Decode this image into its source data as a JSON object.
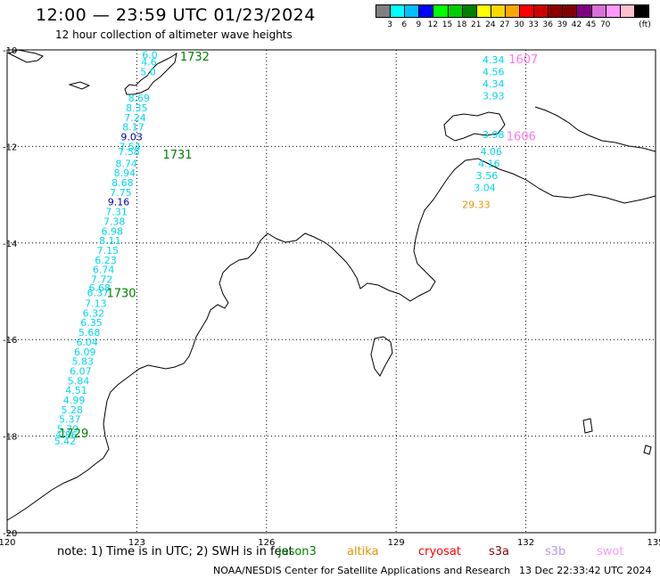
{
  "header": {
    "title": "12:00 — 23:59 UTC 01/23/2024",
    "subtitle": "12 hour collection of altimeter wave heights"
  },
  "legend": {
    "unit": "(ft)",
    "colors": [
      "#808080",
      "#00ffff",
      "#00bfff",
      "#0000ff",
      "#00ff00",
      "#00cc00",
      "#008000",
      "#ffff00",
      "#ffd700",
      "#ffa500",
      "#ff0000",
      "#cc0000",
      "#8b0000",
      "#800000",
      "#800080",
      "#da70d6",
      "#ff99ff",
      "#ffc0cb",
      "#000000"
    ],
    "ticks": [
      "3",
      "6",
      "9",
      "12",
      "15",
      "18",
      "21",
      "24",
      "27",
      "30",
      "33",
      "36",
      "39",
      "42",
      "45",
      "70"
    ]
  },
  "axes": {
    "x_ticks": [
      "120",
      "123",
      "126",
      "129",
      "132",
      "135"
    ],
    "y_ticks": [
      "-10",
      "-12",
      "-14",
      "-16",
      "-18",
      "-20"
    ]
  },
  "chart_data": {
    "type": "scatter",
    "xlim": [
      120,
      135
    ],
    "ylim": [
      -20,
      -10
    ],
    "grid": true,
    "passes": [
      {
        "label": "1732",
        "lon": 124.0,
        "lat": -10.15,
        "color": "#008000"
      },
      {
        "label": "1731",
        "lon": 123.6,
        "lat": -12.18,
        "color": "#008000"
      },
      {
        "label": "1730",
        "lon": 122.3,
        "lat": -15.05,
        "color": "#008000"
      },
      {
        "label": "1729",
        "lon": 121.2,
        "lat": -17.95,
        "color": "#008000"
      },
      {
        "label": "1607",
        "lon": 131.6,
        "lat": -10.2,
        "color": "#ff77ee"
      },
      {
        "label": "1606",
        "lon": 131.55,
        "lat": -11.8,
        "color": "#ff77ee"
      }
    ],
    "track_1": [
      {
        "lon": 123.3,
        "lat": -10.1,
        "v": "6.0"
      },
      {
        "lon": 123.28,
        "lat": -10.25,
        "v": "4.6"
      },
      {
        "lon": 123.26,
        "lat": -10.45,
        "v": "5.0"
      },
      {
        "lon": 123.05,
        "lat": -11.0,
        "v": "8.69"
      },
      {
        "lon": 123.0,
        "lat": -11.2,
        "v": "8.35"
      },
      {
        "lon": 122.96,
        "lat": -11.4,
        "v": "7.24"
      },
      {
        "lon": 122.92,
        "lat": -11.6,
        "v": "8.17"
      },
      {
        "lon": 122.88,
        "lat": -11.8,
        "v": "9.03",
        "color": "#0000aa"
      },
      {
        "lon": 122.84,
        "lat": -12.0,
        "v": "7.54"
      },
      {
        "lon": 122.82,
        "lat": -12.1,
        "v": "7.58"
      },
      {
        "lon": 122.76,
        "lat": -12.35,
        "v": "8.74"
      },
      {
        "lon": 122.72,
        "lat": -12.55,
        "v": "8.94"
      },
      {
        "lon": 122.67,
        "lat": -12.75,
        "v": "8.68"
      },
      {
        "lon": 122.63,
        "lat": -12.95,
        "v": "7.75"
      },
      {
        "lon": 122.58,
        "lat": -13.15,
        "v": "9.16",
        "color": "#0000aa"
      },
      {
        "lon": 122.53,
        "lat": -13.35,
        "v": "7.31"
      },
      {
        "lon": 122.48,
        "lat": -13.55,
        "v": "7.38"
      },
      {
        "lon": 122.43,
        "lat": -13.75,
        "v": "6.98"
      },
      {
        "lon": 122.38,
        "lat": -13.95,
        "v": "8.11"
      },
      {
        "lon": 122.33,
        "lat": -14.15,
        "v": "7.15"
      },
      {
        "lon": 122.28,
        "lat": -14.35,
        "v": "6.23"
      },
      {
        "lon": 122.23,
        "lat": -14.55,
        "v": "6.74"
      },
      {
        "lon": 122.19,
        "lat": -14.75,
        "v": "7.72"
      },
      {
        "lon": 122.14,
        "lat": -14.93,
        "v": "6.68"
      },
      {
        "lon": 122.1,
        "lat": -15.03,
        "v": "6.37"
      },
      {
        "lon": 122.05,
        "lat": -15.25,
        "v": "7.13"
      },
      {
        "lon": 122.0,
        "lat": -15.45,
        "v": "6.32"
      },
      {
        "lon": 121.95,
        "lat": -15.65,
        "v": "6.35"
      },
      {
        "lon": 121.9,
        "lat": -15.85,
        "v": "5.68"
      },
      {
        "lon": 121.85,
        "lat": -16.05,
        "v": "6.04"
      },
      {
        "lon": 121.8,
        "lat": -16.25,
        "v": "6.09"
      },
      {
        "lon": 121.75,
        "lat": -16.45,
        "v": "5.83"
      },
      {
        "lon": 121.7,
        "lat": -16.65,
        "v": "6.07"
      },
      {
        "lon": 121.65,
        "lat": -16.85,
        "v": "5.84"
      },
      {
        "lon": 121.6,
        "lat": -17.05,
        "v": "4.51"
      },
      {
        "lon": 121.55,
        "lat": -17.25,
        "v": "4.99"
      },
      {
        "lon": 121.5,
        "lat": -17.45,
        "v": "5.28"
      },
      {
        "lon": 121.45,
        "lat": -17.65,
        "v": "5.37"
      },
      {
        "lon": 121.4,
        "lat": -17.85,
        "v": "5.79"
      },
      {
        "lon": 121.37,
        "lat": -17.97,
        "v": "4.86"
      },
      {
        "lon": 121.34,
        "lat": -18.1,
        "v": "5.42"
      }
    ],
    "track_2": [
      {
        "lon": 131.25,
        "lat": -10.2,
        "v": "4.34"
      },
      {
        "lon": 131.25,
        "lat": -10.45,
        "v": "4.56"
      },
      {
        "lon": 131.25,
        "lat": -10.7,
        "v": "4.34"
      },
      {
        "lon": 131.25,
        "lat": -10.95,
        "v": "3.93"
      },
      {
        "lon": 131.25,
        "lat": -11.75,
        "v": "3.98"
      },
      {
        "lon": 131.2,
        "lat": -12.1,
        "v": "4.06"
      },
      {
        "lon": 131.15,
        "lat": -12.35,
        "v": "4.16"
      },
      {
        "lon": 131.1,
        "lat": -12.6,
        "v": "3.56"
      },
      {
        "lon": 131.05,
        "lat": -12.85,
        "v": "3.04"
      },
      {
        "lon": 130.85,
        "lat": -13.2,
        "v": "29.33",
        "color": "#e69500"
      }
    ]
  },
  "footer": {
    "note": "note: 1) Time is in UTC; 2) SWH is in feet",
    "satellites": [
      {
        "name": "jason3",
        "color": "#008000"
      },
      {
        "name": "altika",
        "color": "#e69500"
      },
      {
        "name": "cryosat",
        "color": "#ff0000"
      },
      {
        "name": "s3a",
        "color": "#8b0000"
      },
      {
        "name": "s3b",
        "color": "#bb99ee"
      },
      {
        "name": "swot",
        "color": "#ff99ff"
      }
    ],
    "credit": "NOAA/NESDIS Center for Satellite Applications and Research",
    "timestamp": "13 Dec 22:33:42 UTC 2024"
  }
}
